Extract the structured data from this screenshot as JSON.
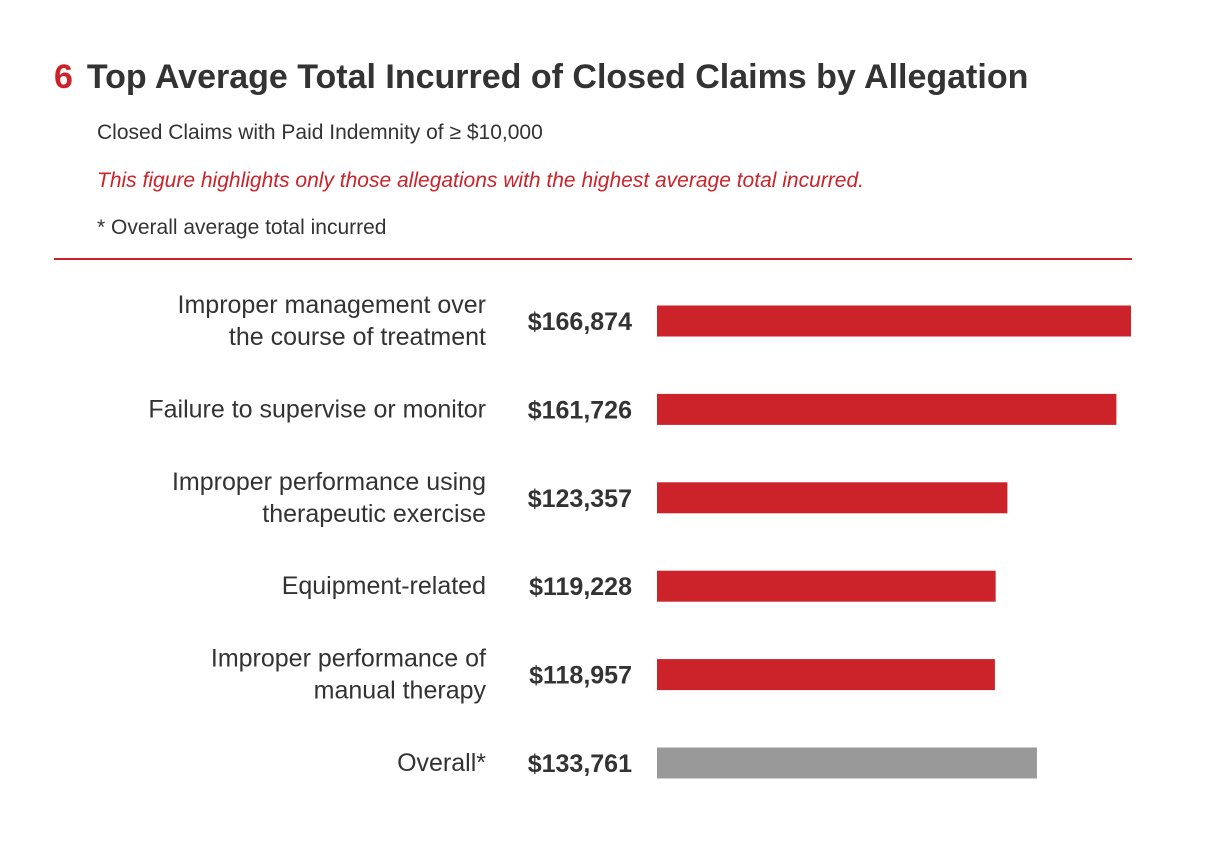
{
  "figure_number": "6",
  "chart_data": {
    "type": "bar",
    "orientation": "horizontal",
    "title": "Top Average Total Incurred of Closed Claims by Allegation",
    "subtitle": "Closed Claims with Paid Indemnity of ≥ $10,000",
    "note": "This figure highlights only those allegations with the highest average total incurred.",
    "footnote": "* Overall average total incurred",
    "xlabel": "",
    "ylabel": "",
    "xlim": [
      0,
      166874
    ],
    "grid": false,
    "categories": [
      [
        "Improper management over",
        "the course of treatment"
      ],
      [
        "Failure to supervise or monitor"
      ],
      [
        "Improper performance using",
        "therapeutic exercise"
      ],
      [
        "Equipment-related"
      ],
      [
        "Improper performance of",
        "manual therapy"
      ],
      [
        "Overall*"
      ]
    ],
    "values": [
      166874,
      161726,
      123357,
      119228,
      118957,
      133761
    ],
    "value_labels": [
      "$166,874",
      "$161,726",
      "$123,357",
      "$119,228",
      "$118,957",
      "$133,761"
    ],
    "bar_colors": [
      "#cc2229",
      "#cc2229",
      "#cc2229",
      "#cc2229",
      "#cc2229",
      "#999999"
    ]
  },
  "colors": {
    "accent": "#cc2229",
    "overall": "#999999",
    "text": "#333333"
  }
}
